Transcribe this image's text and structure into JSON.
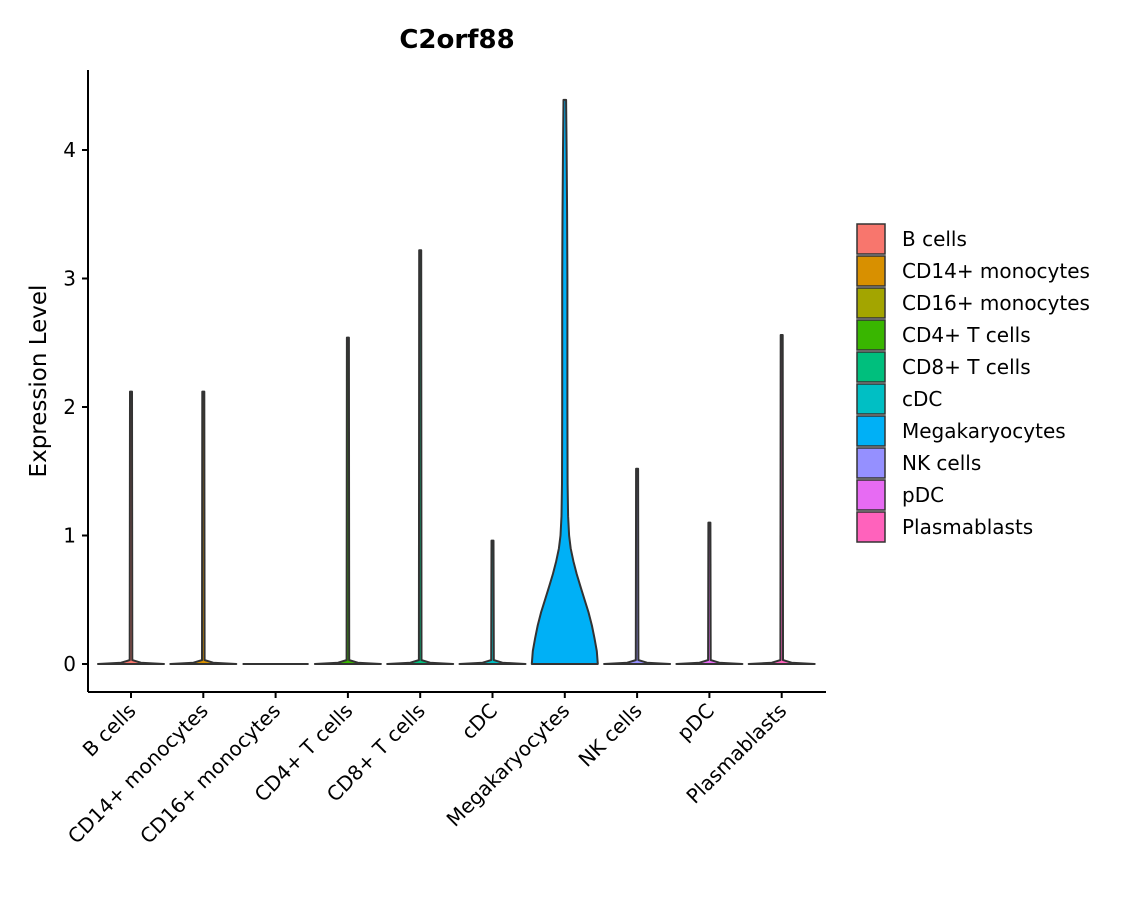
{
  "chart_data": {
    "type": "violin",
    "title": "C2orf88",
    "xlabel": "",
    "ylabel": "Expression Level",
    "ylim": [
      -0.22,
      4.62
    ],
    "yticks": [
      0,
      1,
      2,
      3,
      4
    ],
    "legend_position": "right",
    "categories": [
      "B cells",
      "CD14+ monocytes",
      "CD16+ monocytes",
      "CD4+ T cells",
      "CD8+ T cells",
      "cDC",
      "Megakaryocytes",
      "NK cells",
      "pDC",
      "Plasmablasts"
    ],
    "colors": [
      "#F8766D",
      "#D89000",
      "#A3A500",
      "#39B600",
      "#00BF7D",
      "#00BFC4",
      "#00B0F6",
      "#9590FF",
      "#E76BF3",
      "#FF62BC"
    ],
    "max_values": [
      2.12,
      2.12,
      0,
      2.54,
      3.22,
      0.96,
      4.39,
      1.52,
      1.1,
      2.56
    ],
    "megakaryocytes_density": [
      [
        0,
        1.0
      ],
      [
        0.1,
        0.97
      ],
      [
        0.2,
        0.9
      ],
      [
        0.3,
        0.82
      ],
      [
        0.4,
        0.72
      ],
      [
        0.5,
        0.6
      ],
      [
        0.6,
        0.48
      ],
      [
        0.7,
        0.36
      ],
      [
        0.8,
        0.26
      ],
      [
        0.9,
        0.18
      ],
      [
        1.0,
        0.13
      ],
      [
        1.15,
        0.1
      ],
      [
        1.4,
        0.085
      ],
      [
        2.0,
        0.08
      ],
      [
        3.0,
        0.08
      ],
      [
        3.5,
        0.07
      ],
      [
        4.0,
        0.055
      ],
      [
        4.39,
        0.04
      ]
    ]
  }
}
